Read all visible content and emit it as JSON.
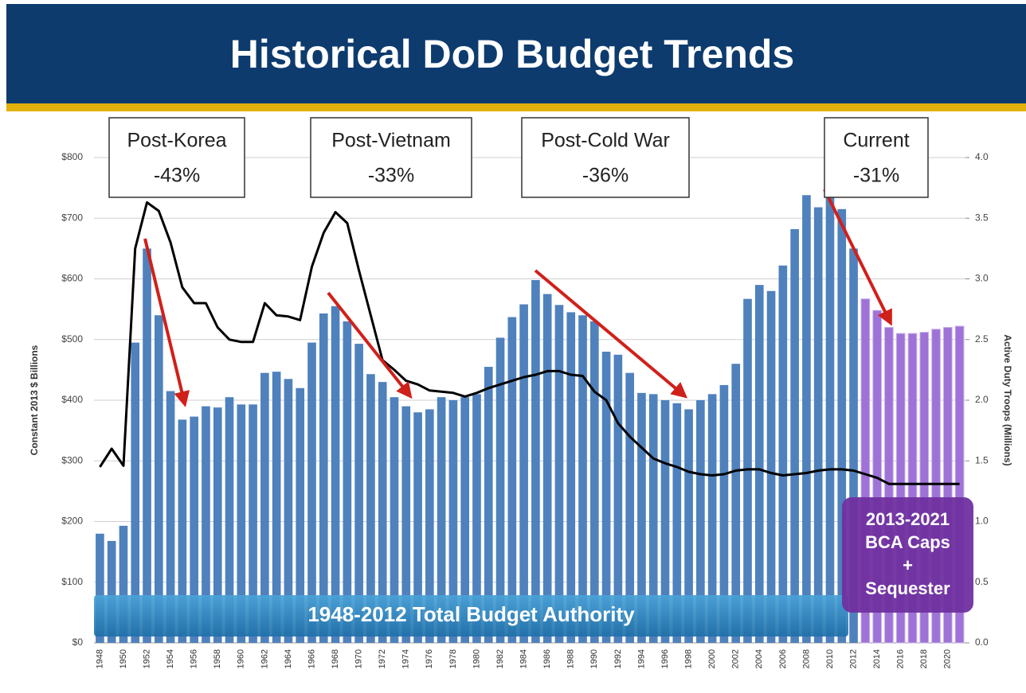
{
  "chart_data": {
    "type": "bar",
    "title": "Historical DoD Budget Trends",
    "y_label": "Constant 2013 $ Billions",
    "y2_label": "Active Duty Troops (Millions)",
    "categories": [
      "1948",
      null,
      "1950",
      null,
      "1952",
      null,
      "1954",
      null,
      "1956",
      null,
      "1958",
      null,
      "1960",
      null,
      "1962",
      null,
      "1964",
      null,
      "1966",
      null,
      "1968",
      null,
      "1970",
      null,
      "1972",
      null,
      "1974",
      null,
      "1976",
      null,
      "1978",
      null,
      "1980",
      null,
      "1982",
      null,
      "1984",
      null,
      "1986",
      null,
      "1988",
      null,
      "1990",
      null,
      "1992",
      null,
      "1994",
      null,
      "1996",
      null,
      "1998",
      null,
      "2000",
      null,
      "2002",
      null,
      "2004",
      null,
      "2006",
      null,
      "2008",
      null,
      "2010",
      null,
      "2012",
      null,
      "2014",
      null,
      "2016",
      null,
      "2018",
      null,
      "2020",
      null
    ],
    "series": [
      {
        "type": "bar",
        "color": "#4f81bd",
        "values": [
          180,
          168,
          193,
          495,
          650,
          540,
          415,
          368,
          373,
          390,
          388,
          405,
          393,
          393,
          445,
          447,
          435,
          420,
          495,
          543,
          555,
          530,
          493,
          443,
          430,
          405,
          390,
          380,
          385,
          405,
          400,
          405,
          410,
          455,
          503,
          537,
          558,
          598,
          575,
          557,
          545,
          540,
          530,
          480,
          475,
          445,
          412,
          410,
          400,
          395,
          385,
          400,
          410,
          425,
          460,
          567,
          590,
          580,
          622,
          682,
          738,
          718,
          735,
          715,
          650,
          null,
          null,
          null,
          null,
          null,
          null,
          null,
          null,
          null
        ]
      },
      {
        "type": "bar",
        "color": "#9e72d6",
        "values": [
          null,
          null,
          null,
          null,
          null,
          null,
          null,
          null,
          null,
          null,
          null,
          null,
          null,
          null,
          null,
          null,
          null,
          null,
          null,
          null,
          null,
          null,
          null,
          null,
          null,
          null,
          null,
          null,
          null,
          null,
          null,
          null,
          null,
          null,
          null,
          null,
          null,
          null,
          null,
          null,
          null,
          null,
          null,
          null,
          null,
          null,
          null,
          null,
          null,
          null,
          null,
          null,
          null,
          null,
          null,
          null,
          null,
          null,
          null,
          null,
          null,
          null,
          null,
          null,
          null,
          567,
          548,
          520,
          510,
          510,
          512,
          517,
          520,
          522
        ]
      },
      {
        "type": "line",
        "axis": "y2",
        "color": "#000000",
        "values": [
          1.45,
          1.6,
          1.46,
          3.25,
          3.63,
          3.56,
          3.3,
          2.93,
          2.8,
          2.8,
          2.6,
          2.5,
          2.48,
          2.48,
          2.8,
          2.7,
          2.69,
          2.66,
          3.1,
          3.38,
          3.55,
          3.46,
          3.07,
          2.7,
          2.33,
          2.25,
          2.16,
          2.13,
          2.08,
          2.07,
          2.06,
          2.03,
          2.06,
          2.1,
          2.13,
          2.16,
          2.19,
          2.21,
          2.24,
          2.24,
          2.21,
          2.2,
          2.07,
          2.0,
          1.81,
          1.7,
          1.61,
          1.52,
          1.48,
          1.45,
          1.41,
          1.39,
          1.38,
          1.39,
          1.42,
          1.43,
          1.43,
          1.4,
          1.38,
          1.39,
          1.4,
          1.42,
          1.43,
          1.43,
          1.42,
          1.39,
          1.36,
          1.31,
          1.31,
          1.31,
          1.31,
          1.31,
          1.31,
          1.31
        ]
      }
    ],
    "ylim": [
      0,
      800
    ],
    "yticks": [
      {
        "value": 0,
        "label": "$0"
      },
      {
        "value": 100,
        "label": "$100"
      },
      {
        "value": 200,
        "label": "$200"
      },
      {
        "value": 300,
        "label": "$300"
      },
      {
        "value": 400,
        "label": "$400"
      },
      {
        "value": 500,
        "label": "$500"
      },
      {
        "value": 600,
        "label": "$600"
      },
      {
        "value": 700,
        "label": "$700"
      },
      {
        "value": 800,
        "label": "$800"
      }
    ],
    "y2lim": [
      0,
      4
    ],
    "y2ticks": [
      {
        "value": 0,
        "label": "0.0"
      },
      0.5,
      {
        "value": 1,
        "label": "1.0"
      },
      1.5,
      {
        "value": 2,
        "label": "2.0"
      },
      2.5,
      {
        "value": 3,
        "label": "3.0"
      },
      3.5,
      {
        "value": 4,
        "label": "4.0"
      }
    ],
    "grid": true,
    "annotations": [
      {
        "lines": [
          "Post-Korea",
          "-43%"
        ]
      },
      {
        "lines": [
          "Post-Vietnam",
          "-33%"
        ]
      },
      {
        "lines": [
          "Post-Cold War",
          "-36%"
        ]
      },
      {
        "lines": [
          "Current",
          "-31%"
        ]
      }
    ],
    "banners": [
      {
        "lines": [
          "1948-2012 Total Budget Authority"
        ]
      },
      {
        "lines": [
          "2013-2021",
          "BCA Caps",
          "+",
          "Sequester"
        ]
      }
    ]
  }
}
